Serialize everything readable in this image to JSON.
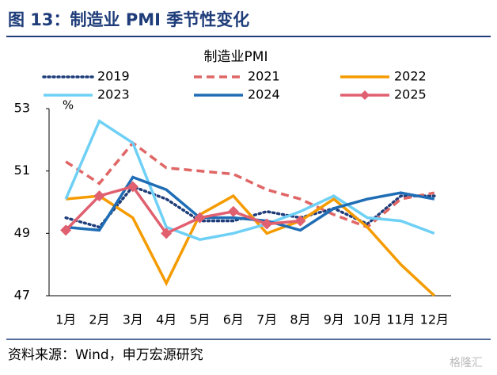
{
  "chart_data": {
    "type": "line",
    "figure_title": "图 13：制造业 PMI 季节性变化",
    "title": "制造业PMI",
    "y_label": "%",
    "source": "资料来源：Wind，申万宏源研究",
    "watermark": "格隆汇",
    "categories": [
      "1月",
      "2月",
      "3月",
      "4月",
      "5月",
      "6月",
      "7月",
      "8月",
      "9月",
      "10月",
      "11月",
      "12月"
    ],
    "ylim": [
      47,
      53
    ],
    "yticks": [
      47,
      49,
      51,
      53
    ],
    "grid": false,
    "series": [
      {
        "name": "2019",
        "color": "#1f3d7a",
        "style": "dotted",
        "values": [
          49.5,
          49.2,
          50.5,
          50.1,
          49.4,
          49.4,
          49.7,
          49.5,
          49.8,
          49.3,
          50.2,
          50.2
        ]
      },
      {
        "name": "2021",
        "color": "#e06666",
        "style": "dashed",
        "values": [
          51.3,
          50.6,
          51.9,
          51.1,
          51.0,
          50.9,
          50.4,
          50.1,
          49.6,
          49.2,
          50.1,
          50.3
        ]
      },
      {
        "name": "2022",
        "color": "#f59b00",
        "style": "solid",
        "values": [
          50.1,
          50.2,
          49.5,
          47.4,
          49.6,
          50.2,
          49.0,
          49.4,
          50.1,
          49.2,
          48.0,
          47.0
        ]
      },
      {
        "name": "2023",
        "color": "#6fd0f5",
        "style": "solid",
        "values": [
          50.1,
          52.6,
          51.9,
          49.2,
          48.8,
          49.0,
          49.3,
          49.7,
          50.2,
          49.5,
          49.4,
          49.0
        ]
      },
      {
        "name": "2024",
        "color": "#1f6db5",
        "style": "solid",
        "values": [
          49.2,
          49.1,
          50.8,
          50.4,
          49.5,
          49.5,
          49.4,
          49.1,
          49.8,
          50.1,
          50.3,
          50.1
        ]
      },
      {
        "name": "2025",
        "color": "#e06070",
        "style": "solid",
        "marker": "diamond",
        "values": [
          49.1,
          50.2,
          50.5,
          49.0,
          49.5,
          49.7,
          49.3,
          49.4,
          null,
          null,
          null,
          null
        ]
      }
    ]
  }
}
